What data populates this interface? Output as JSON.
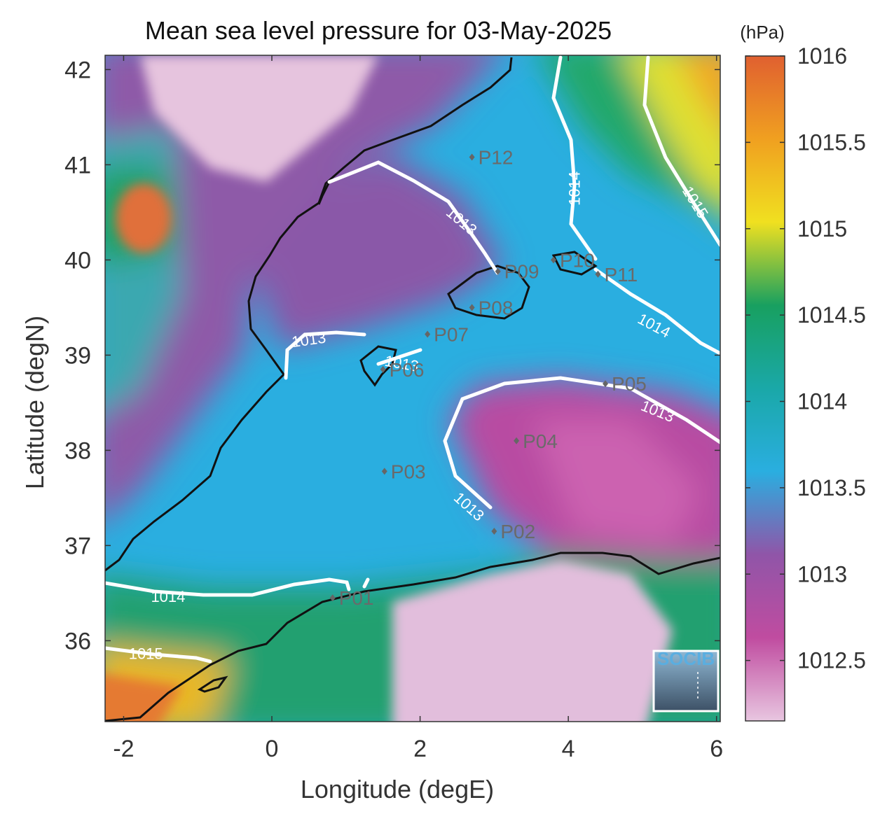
{
  "title": "Mean sea level pressure for 03-May-2025",
  "x_axis": {
    "label": "Longitude (degE)",
    "ticks": [
      "-2",
      "0",
      "2",
      "4",
      "6"
    ],
    "tick_values": [
      -2,
      0,
      2,
      4,
      6
    ],
    "range": [
      -2.25,
      6.05
    ]
  },
  "y_axis": {
    "label": "Latitude (degN)",
    "ticks": [
      "36",
      "37",
      "38",
      "39",
      "40",
      "41",
      "42"
    ],
    "tick_values": [
      36,
      37,
      38,
      39,
      40,
      41,
      42
    ],
    "range": [
      35.15,
      42.15
    ]
  },
  "colorbar": {
    "unit": "(hPa)",
    "ticks": [
      "1012.5",
      "1013",
      "1013.5",
      "1014",
      "1014.5",
      "1015",
      "1015.5",
      "1016"
    ],
    "tick_values": [
      1012.5,
      1013,
      1013.5,
      1014,
      1014.5,
      1015,
      1015.5,
      1016
    ],
    "range": [
      1012.15,
      1016.0
    ],
    "colors": [
      "#e8c6e0",
      "#c04ca0",
      "#9055a8",
      "#2aaee0",
      "#1aa8a8",
      "#18a060",
      "#f0e020",
      "#f0a020",
      "#e06030"
    ]
  },
  "contour_labels": [
    {
      "text": "1013",
      "lon": 2.55,
      "lat": 40.4,
      "angle": 40
    },
    {
      "text": "1013",
      "lon": 0.5,
      "lat": 39.15,
      "angle": -8
    },
    {
      "text": "1013",
      "lon": 1.75,
      "lat": 38.9,
      "angle": 10
    },
    {
      "text": "1013",
      "lon": 2.65,
      "lat": 37.4,
      "angle": 42
    },
    {
      "text": "1013",
      "lon": 5.2,
      "lat": 38.4,
      "angle": 22
    },
    {
      "text": "1014",
      "lon": 4.1,
      "lat": 40.75,
      "angle": -90
    },
    {
      "text": "1014",
      "lon": 5.15,
      "lat": 39.3,
      "angle": 28
    },
    {
      "text": "1014",
      "lon": -1.4,
      "lat": 36.45,
      "angle": 0
    },
    {
      "text": "1015",
      "lon": 5.7,
      "lat": 40.6,
      "angle": 58
    },
    {
      "text": "1015",
      "lon": -1.7,
      "lat": 35.85,
      "angle": 0
    }
  ],
  "stations": [
    {
      "label": "P01",
      "lon": 0.82,
      "lat": 36.45
    },
    {
      "label": "P02",
      "lon": 3.0,
      "lat": 37.15
    },
    {
      "label": "P03",
      "lon": 1.52,
      "lat": 37.78
    },
    {
      "label": "P04",
      "lon": 3.3,
      "lat": 38.1
    },
    {
      "label": "P05",
      "lon": 4.5,
      "lat": 38.7
    },
    {
      "label": "P06",
      "lon": 1.5,
      "lat": 38.85
    },
    {
      "label": "P07",
      "lon": 2.1,
      "lat": 39.22
    },
    {
      "label": "P08",
      "lon": 2.7,
      "lat": 39.5
    },
    {
      "label": "P09",
      "lon": 3.05,
      "lat": 39.88
    },
    {
      "label": "P10",
      "lon": 3.8,
      "lat": 40.0
    },
    {
      "label": "P11",
      "lon": 4.4,
      "lat": 39.85
    },
    {
      "label": "P12",
      "lon": 2.7,
      "lat": 41.08
    }
  ],
  "logo": {
    "text": "SOCIB"
  }
}
